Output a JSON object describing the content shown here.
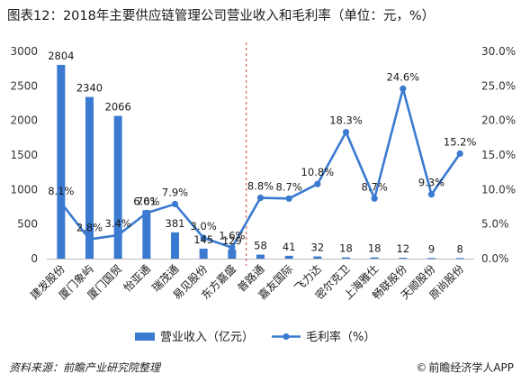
{
  "title": "图表12：2018年主要供应链管理公司营业收入和毛利率（单位：元，%）",
  "footer": {
    "source": "资料来源：前瞻产业研究院整理",
    "brand": "前瞻经济学人APP",
    "copyright_icon": "copyright-icon"
  },
  "colors": {
    "bar": "#3a7ad0",
    "line": "#3a7ad0",
    "divider": "#d9433a"
  },
  "chart_data": {
    "type": "bar",
    "categories": [
      "建发股份",
      "厦门象屿",
      "厦门国贸",
      "怡亚通",
      "瑞茂通",
      "易见股份",
      "东方嘉盛",
      "普路通",
      "嘉友国际",
      "飞力达",
      "密尔克卫",
      "上海雅仕",
      "畅联股份",
      "天顺股份",
      "原尚股份"
    ],
    "series": [
      {
        "name": "营业收入（亿元）",
        "type": "bar",
        "axis": "left",
        "values": [
          2804,
          2340,
          2066,
          701,
          381,
          145,
          129,
          58,
          41,
          32,
          18,
          18,
          12,
          9,
          8
        ]
      },
      {
        "name": "毛利率（%）",
        "type": "line",
        "axis": "right",
        "values": [
          8.1,
          2.8,
          3.4,
          6.6,
          7.9,
          3.0,
          1.6,
          8.8,
          8.7,
          10.8,
          18.3,
          8.7,
          24.6,
          9.3,
          15.2
        ]
      }
    ],
    "bar_labels": [
      "2804",
      "2340",
      "2066",
      "701",
      "381",
      "145",
      "129",
      "58",
      "41",
      "32",
      "18",
      "18",
      "12",
      "9",
      "8"
    ],
    "line_labels": [
      "8.1%",
      "2.8%",
      "3.4%",
      "6.6%",
      "7.9%",
      "3.0%",
      "1.6%",
      "8.8%",
      "8.7%",
      "10.8%",
      "18.3%",
      "8.7%",
      "24.6%",
      "9.3%",
      "15.2%"
    ],
    "ylim_left": [
      0,
      3000
    ],
    "yticks_left": [
      "0",
      "500",
      "1000",
      "1500",
      "2000",
      "2500",
      "3000"
    ],
    "ylim_right": [
      0,
      30
    ],
    "yticks_right": [
      "0.0%",
      "5.0%",
      "10.0%",
      "15.0%",
      "20.0%",
      "25.0%",
      "30.0%"
    ],
    "divider_after_category": 7,
    "legend_placement": "bottom",
    "grid": false
  }
}
